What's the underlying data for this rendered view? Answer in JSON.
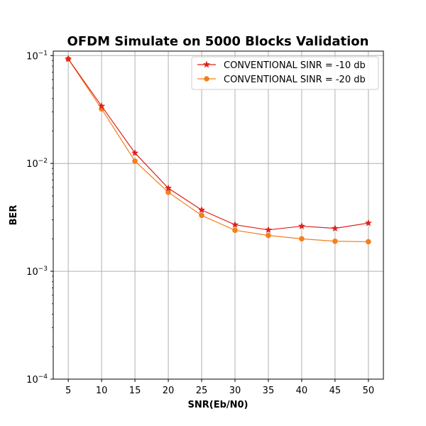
{
  "chart_data": {
    "type": "line",
    "title": "OFDM Simulate on 5000 Blocks Validation",
    "xlabel": "SNR(Eb/N0)",
    "ylabel": "BER",
    "x": [
      5,
      10,
      15,
      20,
      25,
      30,
      35,
      40,
      45,
      50
    ],
    "xticks": [
      "5",
      "10",
      "15",
      "20",
      "25",
      "30",
      "35",
      "40",
      "45",
      "50"
    ],
    "xlim": [
      2.75,
      52.25
    ],
    "ylim": [
      0.0001,
      0.11
    ],
    "yscale": "log",
    "yticks": [
      {
        "value": 0.1,
        "base": "10",
        "exp": "−1"
      },
      {
        "value": 0.01,
        "base": "10",
        "exp": "−2"
      },
      {
        "value": 0.001,
        "base": "10",
        "exp": "−3"
      },
      {
        "value": 0.0001,
        "base": "10",
        "exp": "−4"
      }
    ],
    "grid": true,
    "legend_position": "top-right",
    "series": [
      {
        "name": "CONVENTIONAL SINR = -10 db",
        "color": "#e0201b",
        "marker": "star",
        "values": [
          0.093,
          0.034,
          0.0125,
          0.0059,
          0.0037,
          0.0027,
          0.00242,
          0.00262,
          0.0025,
          0.0028
        ]
      },
      {
        "name": "CONVENTIONAL SINR = -20 db",
        "color": "#f47f1b",
        "marker": "circle",
        "values": [
          0.093,
          0.032,
          0.0105,
          0.0054,
          0.0033,
          0.0024,
          0.00215,
          0.002,
          0.0019,
          0.00188
        ]
      }
    ]
  }
}
